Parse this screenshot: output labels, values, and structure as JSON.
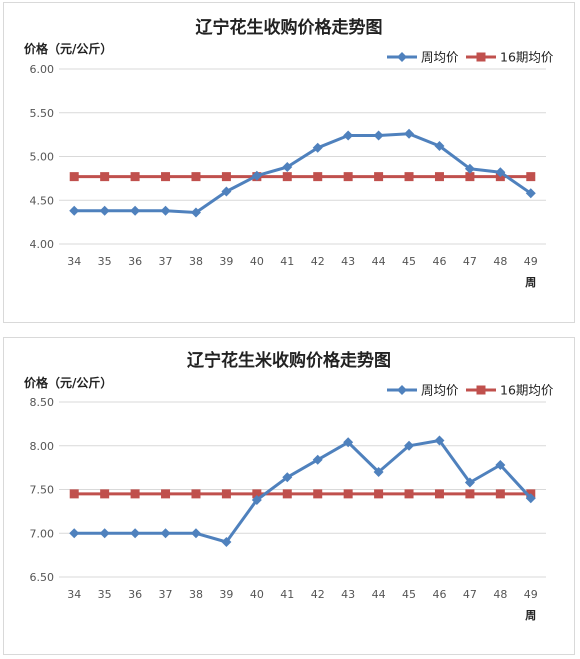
{
  "colors": {
    "weekly": "#4F81BD",
    "average": "#C0504D",
    "grid": "#D9D9D9"
  },
  "chart_data": [
    {
      "type": "line",
      "title": "辽宁花生收购价格走势图",
      "ylabel": "价格（元/公斤）",
      "xlabel": "周",
      "categories": [
        "34",
        "35",
        "36",
        "37",
        "38",
        "39",
        "40",
        "41",
        "42",
        "43",
        "44",
        "45",
        "46",
        "47",
        "48",
        "49"
      ],
      "ylim": [
        4.0,
        6.0
      ],
      "yticks": [
        "4.00",
        "4.50",
        "5.00",
        "5.50",
        "6.00"
      ],
      "grid": true,
      "legend_position": "top-right",
      "series": [
        {
          "name": "周均价",
          "marker": "diamond",
          "values": [
            4.38,
            4.38,
            4.38,
            4.38,
            4.36,
            4.6,
            4.78,
            4.88,
            5.1,
            5.24,
            5.24,
            5.26,
            5.12,
            4.86,
            4.82,
            4.58
          ]
        },
        {
          "name": "16期均价",
          "marker": "square",
          "values": [
            4.77,
            4.77,
            4.77,
            4.77,
            4.77,
            4.77,
            4.77,
            4.77,
            4.77,
            4.77,
            4.77,
            4.77,
            4.77,
            4.77,
            4.77,
            4.77
          ]
        }
      ]
    },
    {
      "type": "line",
      "title": "辽宁花生米收购价格走势图",
      "ylabel": "价格（元/公斤）",
      "xlabel": "周",
      "categories": [
        "34",
        "35",
        "36",
        "37",
        "38",
        "39",
        "40",
        "41",
        "42",
        "43",
        "44",
        "45",
        "46",
        "47",
        "48",
        "49"
      ],
      "ylim": [
        6.5,
        8.5
      ],
      "yticks": [
        "6.50",
        "7.00",
        "7.50",
        "8.00",
        "8.50"
      ],
      "grid": true,
      "legend_position": "top-right",
      "series": [
        {
          "name": "周均价",
          "marker": "diamond",
          "values": [
            7.0,
            7.0,
            7.0,
            7.0,
            7.0,
            6.9,
            7.38,
            7.64,
            7.84,
            8.04,
            7.7,
            8.0,
            8.06,
            7.58,
            7.78,
            7.4
          ]
        },
        {
          "name": "16期均价",
          "marker": "square",
          "values": [
            7.45,
            7.45,
            7.45,
            7.45,
            7.45,
            7.45,
            7.45,
            7.45,
            7.45,
            7.45,
            7.45,
            7.45,
            7.45,
            7.45,
            7.45,
            7.45
          ]
        }
      ]
    }
  ]
}
